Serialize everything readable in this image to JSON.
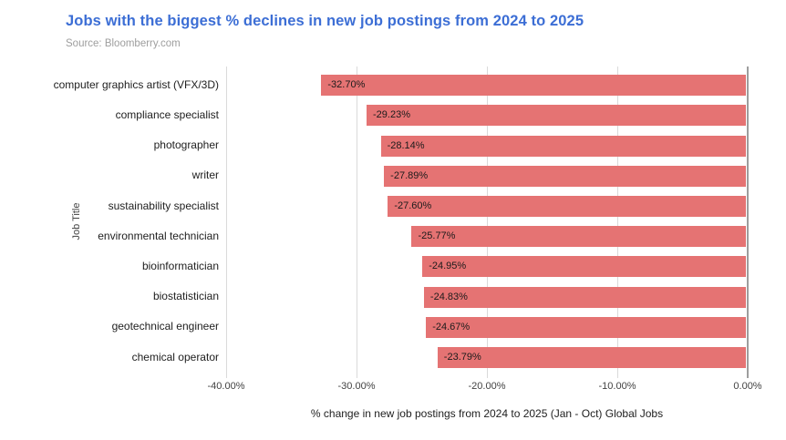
{
  "header": {
    "title": "Jobs with the biggest % declines in new job postings from 2024 to 2025",
    "source": "Source: Bloomberry.com"
  },
  "colors": {
    "title": "#3c6ed5",
    "bar": "#e57373",
    "bar_label": "#1b1b1b",
    "gridline": "#dadada",
    "zero_line": "#9e9e9e"
  },
  "chart_data": {
    "type": "bar",
    "orientation": "horizontal",
    "title": "Jobs with the biggest % declines in new job postings from 2024 to 2025",
    "subtitle": "Source: Bloomberry.com",
    "categories": [
      "computer graphics artist (VFX/3D)",
      "compliance specialist",
      "photographer",
      "writer",
      "sustainability specialist",
      "environmental technician",
      "bioinformatician",
      "biostatistician",
      "geotechnical engineer",
      "chemical operator"
    ],
    "values": [
      -32.7,
      -29.23,
      -28.14,
      -27.89,
      -27.6,
      -25.77,
      -24.95,
      -24.83,
      -24.67,
      -23.79
    ],
    "bar_labels": [
      "-32.70%",
      "-29.23%",
      "-28.14%",
      "-27.89%",
      "-27.60%",
      "-25.77%",
      "-24.95%",
      "-24.83%",
      "-24.67%",
      "-23.79%"
    ],
    "xlabel": "% change in new job postings from 2024 to 2025 (Jan - Oct) Global Jobs",
    "ylabel": "Job Title",
    "xlim": [
      -40,
      0
    ],
    "xticks": [
      -40,
      -30,
      -20,
      -10,
      0
    ],
    "xtick_labels": [
      "-40.00%",
      "-30.00%",
      "-20.00%",
      "-10.00%",
      "0.00%"
    ],
    "grid": true,
    "legend": "none"
  }
}
